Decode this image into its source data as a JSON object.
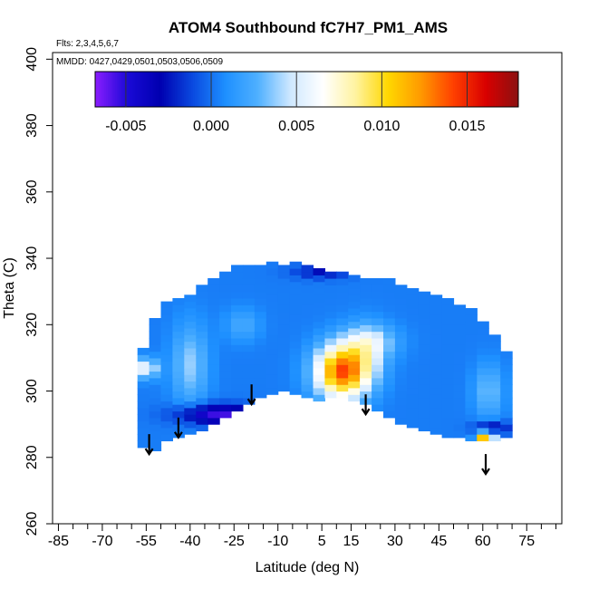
{
  "chart_data": {
    "type": "heatmap",
    "title": "ATOM4 Southbound fC7H7_PM1_AMS",
    "flights_note": "Flts: 2,3,4,5,6,7",
    "dates_note": "MMDD: 0427,0429,0501,0503,0506,0509",
    "xlabel": "Latitude (deg N)",
    "ylabel": "Theta (C)",
    "xlim": [
      -87,
      87
    ],
    "ylim": [
      260,
      402
    ],
    "x_ticks": [
      -85,
      -70,
      -55,
      -40,
      -25,
      -10,
      5,
      15,
      30,
      45,
      60,
      75
    ],
    "x_tick_labels": [
      "-85",
      "-70",
      "-55",
      "-40",
      "-25",
      "-10",
      "5",
      "15",
      "30",
      "45",
      "60",
      "75"
    ],
    "x_minor_ticks": [
      -80,
      -75,
      -65,
      -60,
      -50,
      -45,
      -35,
      -30,
      -20,
      -15,
      -5,
      0,
      10,
      20,
      25,
      35,
      40,
      50,
      55,
      65,
      70,
      80,
      85
    ],
    "y_ticks": [
      260,
      280,
      300,
      320,
      340,
      360,
      380,
      400
    ],
    "y_tick_labels": [
      "260",
      "280",
      "300",
      "320",
      "340",
      "360",
      "380",
      "400"
    ],
    "colorbar": {
      "min": -0.0068,
      "max": 0.018,
      "ticks": [
        -0.005,
        0.0,
        0.005,
        0.01,
        0.015
      ],
      "tick_labels": [
        "-0.005",
        "0.000",
        "0.005",
        "0.010",
        "0.015"
      ],
      "colors": [
        "#8b1cff",
        "#1a0ad6",
        "#0000b0",
        "#0a4ae0",
        "#1e90ff",
        "#4fb0ff",
        "#cfe8ff",
        "#ffffff",
        "#fff3a0",
        "#ffd700",
        "#ff9a00",
        "#ff4000",
        "#d90000",
        "#8b1010"
      ]
    },
    "field": {
      "lat": [
        -56,
        -52,
        -48,
        -44,
        -40,
        -36,
        -32,
        -28,
        -24,
        -20,
        -16,
        -12,
        -8,
        -4,
        0,
        4,
        8,
        12,
        16,
        20,
        24,
        28,
        32,
        36,
        40,
        44,
        48,
        52,
        56,
        60,
        64,
        68
      ],
      "lat_half_width": 2,
      "theta_step": 2,
      "top": [
        313,
        322,
        326,
        327,
        328,
        331,
        334,
        336,
        337,
        338,
        338,
        339,
        338,
        338,
        337,
        337,
        336,
        336,
        335,
        334,
        334,
        333,
        331,
        330,
        329,
        328,
        327,
        326,
        325,
        321,
        317,
        312
      ],
      "bottom": [
        283,
        282,
        285,
        286,
        287,
        288,
        290,
        292,
        294,
        296,
        298,
        299,
        300,
        299,
        298,
        297,
        298,
        298,
        297,
        296,
        294,
        292,
        290,
        289,
        288,
        287,
        286,
        286,
        285,
        285,
        285,
        286
      ],
      "background": 0.0003,
      "anomalies": [
        {
          "lat": 12,
          "theta": 306,
          "sx": 9,
          "sy": 8,
          "amp": 0.0135
        },
        {
          "lat": 20,
          "theta": 311,
          "sx": 7,
          "sy": 9,
          "amp": 0.0025
        },
        {
          "lat": 22,
          "theta": 315,
          "sx": 9,
          "sy": 5,
          "amp": 0.0035
        },
        {
          "lat": -55,
          "theta": 307,
          "sx": 4,
          "sy": 3,
          "amp": 0.006
        },
        {
          "lat": -40,
          "theta": 308,
          "sx": 6,
          "sy": 12,
          "amp": 0.0035
        },
        {
          "lat": -22,
          "theta": 320,
          "sx": 6,
          "sy": 5,
          "amp": 0.002
        },
        {
          "lat": 61,
          "theta": 286,
          "sx": 3,
          "sy": 2,
          "amp": 0.012
        },
        {
          "lat": -30,
          "theta": 293,
          "sx": 14,
          "sy": 3,
          "amp": -0.006
        },
        {
          "lat": 63,
          "theta": 289,
          "sx": 6,
          "sy": 2,
          "amp": -0.004
        },
        {
          "lat": 5,
          "theta": 336,
          "sx": 10,
          "sy": 2,
          "amp": -0.003
        },
        {
          "lat": 62,
          "theta": 300,
          "sx": 5,
          "sy": 8,
          "amp": 0.003
        }
      ]
    },
    "arrows": [
      {
        "lat": -54,
        "theta_top": 287,
        "theta_bottom": 281
      },
      {
        "lat": -44,
        "theta_top": 292,
        "theta_bottom": 286
      },
      {
        "lat": -19,
        "theta_top": 302,
        "theta_bottom": 296
      },
      {
        "lat": 20,
        "theta_top": 299,
        "theta_bottom": 293
      },
      {
        "lat": 61,
        "theta_top": 281,
        "theta_bottom": 275
      }
    ]
  }
}
